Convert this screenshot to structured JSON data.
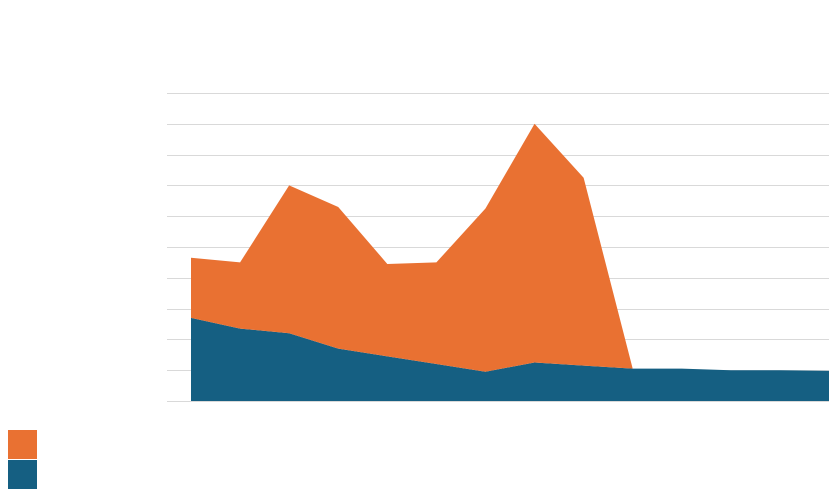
{
  "chart_data": {
    "type": "area",
    "stacked": true,
    "x": [
      0,
      1,
      2,
      3,
      4,
      5,
      6,
      7,
      8,
      9,
      10,
      11,
      12,
      13
    ],
    "ylim": [
      0,
      100
    ],
    "grid": true,
    "legend_position": "bottom-left",
    "series": [
      {
        "color": "#155f82",
        "values": [
          27,
          23.5,
          22,
          17,
          14.5,
          12,
          9.5,
          12.5,
          11.5,
          10.5,
          10.5,
          10,
          10,
          9.8
        ]
      },
      {
        "color": "#e97132",
        "values": [
          19.5,
          21.5,
          48,
          46,
          30,
          33,
          53,
          77.5,
          61,
          0,
          0,
          0,
          0,
          0
        ]
      }
    ]
  }
}
